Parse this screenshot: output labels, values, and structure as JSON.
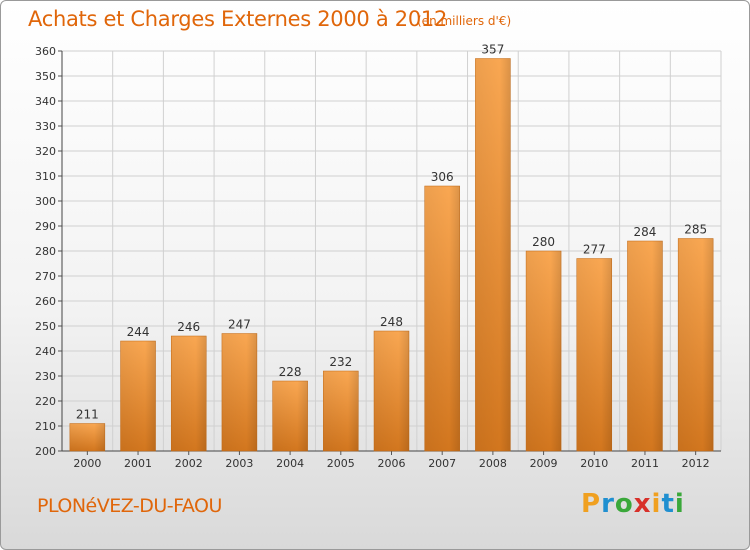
{
  "header": {
    "title": "Achats et Charges Externes 2000 à 2012",
    "unit": "(en milliers d'€)"
  },
  "footer": {
    "commune": "PLONéVEZ-DU-FAOU",
    "logo": {
      "text": "Proxiti",
      "letters": [
        {
          "char": "P",
          "color": "#f0a020"
        },
        {
          "char": "r",
          "color": "#1f8fd0"
        },
        {
          "char": "o",
          "color": "#3aa83a"
        },
        {
          "char": "x",
          "color": "#d8302a"
        },
        {
          "char": "i",
          "color": "#f0a020"
        },
        {
          "char": "t",
          "color": "#1f8fd0"
        },
        {
          "char": "i",
          "color": "#3aa83a"
        }
      ]
    }
  },
  "colors": {
    "bar_top": "#f9a752",
    "bar_bottom": "#d2761e",
    "title": "#e0660a",
    "grid": "#d0d0d0"
  },
  "chart_data": {
    "type": "bar",
    "title": "Achats et Charges Externes 2000 à 2012",
    "subtitle": "(en milliers d'€)",
    "xlabel": "",
    "ylabel": "",
    "categories": [
      "2000",
      "2001",
      "2002",
      "2003",
      "2004",
      "2005",
      "2006",
      "2007",
      "2008",
      "2009",
      "2010",
      "2011",
      "2012"
    ],
    "values": [
      211,
      244,
      246,
      247,
      228,
      232,
      248,
      306,
      357,
      280,
      277,
      284,
      285
    ],
    "ylim": [
      200,
      360
    ],
    "yticks": [
      200,
      210,
      220,
      230,
      240,
      250,
      260,
      270,
      280,
      290,
      300,
      310,
      320,
      330,
      340,
      350,
      360
    ],
    "grid": true,
    "legend": "none"
  }
}
